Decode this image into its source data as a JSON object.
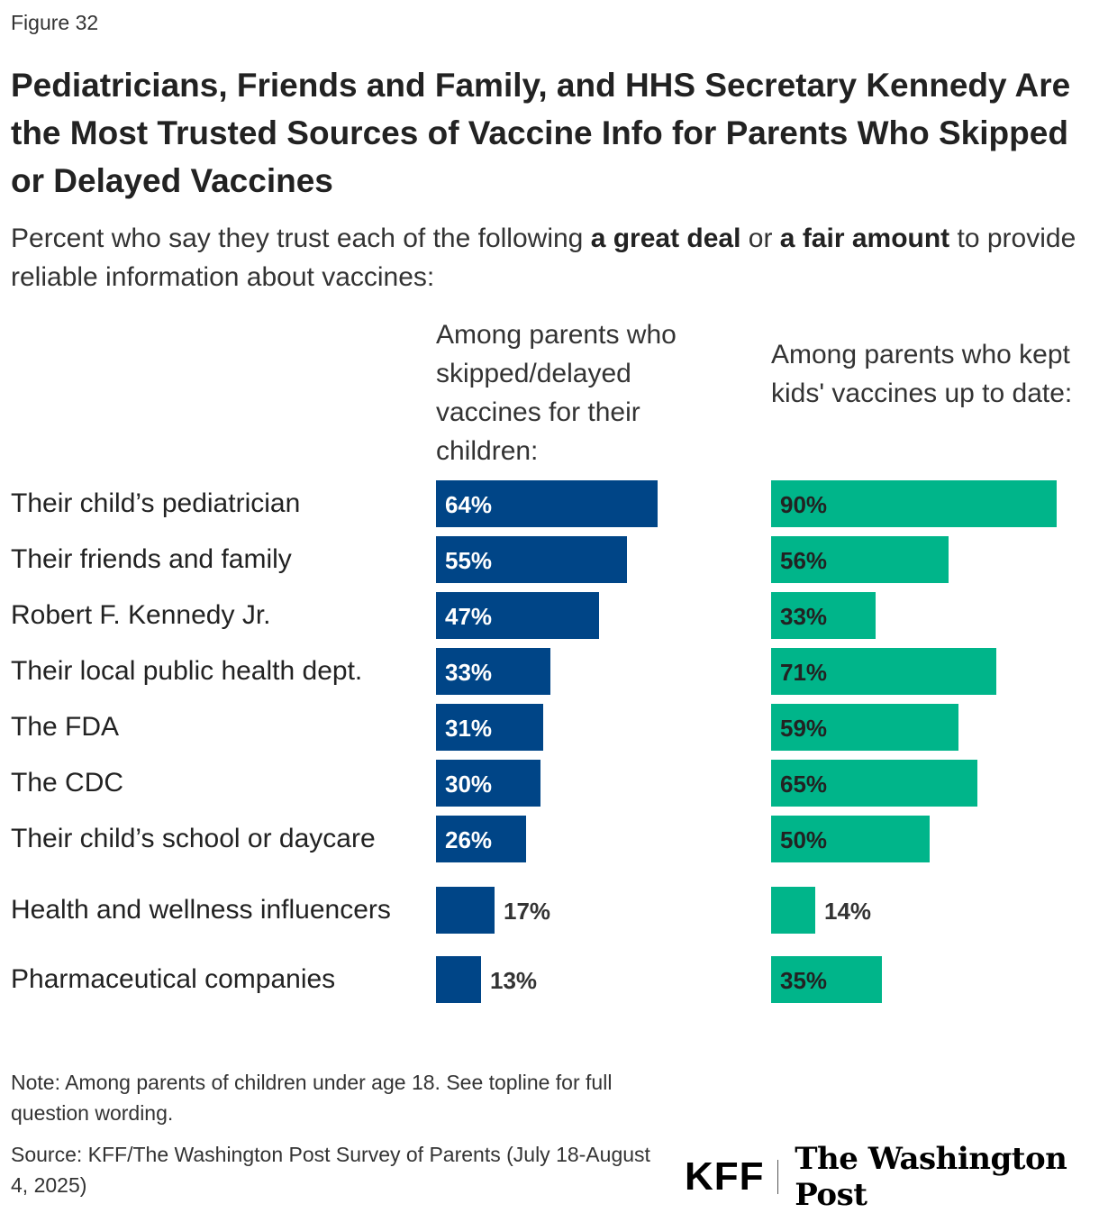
{
  "figure_label": "Figure 32",
  "title": "Pediatricians, Friends and Family, and HHS Secretary Kennedy Are the Most Trusted Sources of Vaccine Info for Parents Who Skipped or Delayed Vaccines",
  "subtitle": {
    "part1": "Percent who say they trust each of the following ",
    "bold1": "a great deal",
    "part2": " or ",
    "bold2": "a fair amount",
    "part3": " to provide reliable information about vaccines:"
  },
  "chart_data": {
    "type": "bar",
    "orientation": "horizontal",
    "title": "Pediatricians, Friends and Family, and HHS Secretary Kennedy Are the Most Trusted Sources of Vaccine Info for Parents Who Skipped or Delayed Vaccines",
    "categories": [
      "Their child’s pediatrician",
      "Their friends and family",
      "Robert F. Kennedy Jr.",
      "Their local public health dept.",
      "The FDA",
      "The CDC",
      "Their child’s school or daycare",
      "Health and wellness influencers",
      "Pharmaceutical companies"
    ],
    "series": [
      {
        "name": "Among parents who skipped/delayed vaccines for their children:",
        "color": "#004587",
        "values": [
          64,
          55,
          47,
          33,
          31,
          30,
          26,
          17,
          13
        ],
        "labels": [
          "64%",
          "55%",
          "47%",
          "33%",
          "31%",
          "30%",
          "26%",
          "17%",
          "13%"
        ]
      },
      {
        "name": "Among parents who kept kids' vaccines up to date:",
        "color": "#00B58A",
        "values": [
          90,
          56,
          33,
          71,
          59,
          65,
          50,
          14,
          35
        ],
        "labels": [
          "90%",
          "56%",
          "33%",
          "71%",
          "59%",
          "65%",
          "50%",
          "14%",
          "35%"
        ]
      }
    ],
    "xlim": [
      0,
      100
    ],
    "grid": false
  },
  "note": "Note: Among parents of children under age 18. See topline for full question wording.",
  "source": "Source: KFF/The Washington Post Survey of Parents (July 18-August 4, 2025)",
  "logos": {
    "kff": "KFF",
    "wapo": "The Washington Post"
  },
  "colors": {
    "inner_label_dark_bg": "#ffffff",
    "inner_label_light_bg": "#222222",
    "outside_label": "#333333"
  }
}
